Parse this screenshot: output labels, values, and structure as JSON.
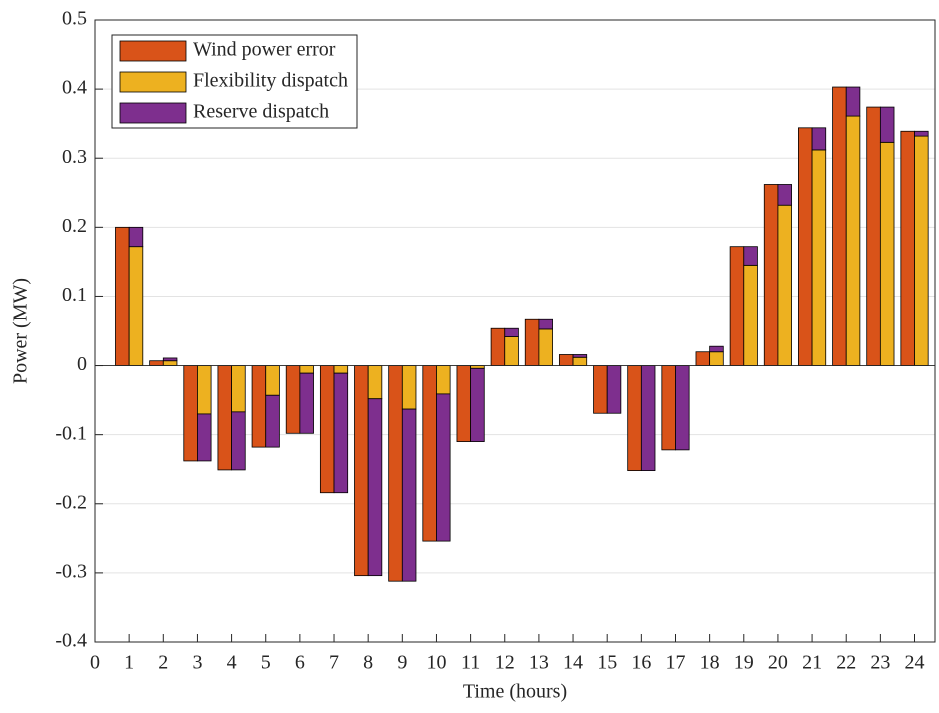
{
  "chart_data": {
    "type": "grouped_stacked_bar",
    "xlabel": "Time (hours)",
    "ylabel": "Power (MW)",
    "x": [
      1,
      2,
      3,
      4,
      5,
      6,
      7,
      8,
      9,
      10,
      11,
      12,
      13,
      14,
      15,
      16,
      17,
      18,
      19,
      20,
      21,
      22,
      23,
      24
    ],
    "series": [
      {
        "name": "Wind power error",
        "color": "#D95319",
        "stack": "a",
        "values": [
          0.2,
          0.007,
          -0.138,
          -0.151,
          -0.118,
          -0.098,
          -0.184,
          -0.304,
          -0.312,
          -0.254,
          -0.11,
          0.054,
          0.067,
          0.016,
          -0.069,
          -0.152,
          -0.122,
          0.02,
          0.172,
          0.262,
          0.344,
          0.403,
          0.374,
          0.339
        ]
      },
      {
        "name": "Flexibility dispatch",
        "color": "#EDB120",
        "stack": "b",
        "values": [
          0.172,
          0.007,
          -0.07,
          -0.067,
          -0.043,
          -0.011,
          -0.011,
          -0.048,
          -0.063,
          -0.041,
          -0.004,
          0.042,
          0.053,
          0.012,
          0,
          0,
          0,
          0.02,
          0.145,
          0.232,
          0.312,
          0.361,
          0.323,
          0.332
        ]
      },
      {
        "name": "Reserve dispatch",
        "color": "#7E2F8E",
        "stack": "b",
        "values": [
          0.028,
          0.004,
          -0.068,
          -0.084,
          -0.075,
          -0.087,
          -0.173,
          -0.256,
          -0.249,
          -0.213,
          -0.106,
          0.012,
          0.014,
          0.004,
          -0.069,
          -0.152,
          -0.122,
          0.008,
          0.027,
          0.03,
          0.032,
          0.042,
          0.051,
          0.007
        ]
      }
    ],
    "xlim": [
      0,
      24.6
    ],
    "xticks": [
      0,
      1,
      2,
      3,
      4,
      5,
      6,
      7,
      8,
      9,
      10,
      11,
      12,
      13,
      14,
      15,
      16,
      17,
      18,
      19,
      20,
      21,
      22,
      23,
      24
    ],
    "ylim": [
      -0.4,
      0.5
    ],
    "yticks": [
      {
        "value": -0.4,
        "label": "-0.4"
      },
      {
        "value": -0.3,
        "label": "-0.3"
      },
      {
        "value": -0.2,
        "label": "-0.2"
      },
      {
        "value": -0.1,
        "label": "-0.1"
      },
      0,
      0.1,
      0.2,
      0.3,
      0.4,
      0.5
    ],
    "grid": "y",
    "legend": "upper-left"
  }
}
